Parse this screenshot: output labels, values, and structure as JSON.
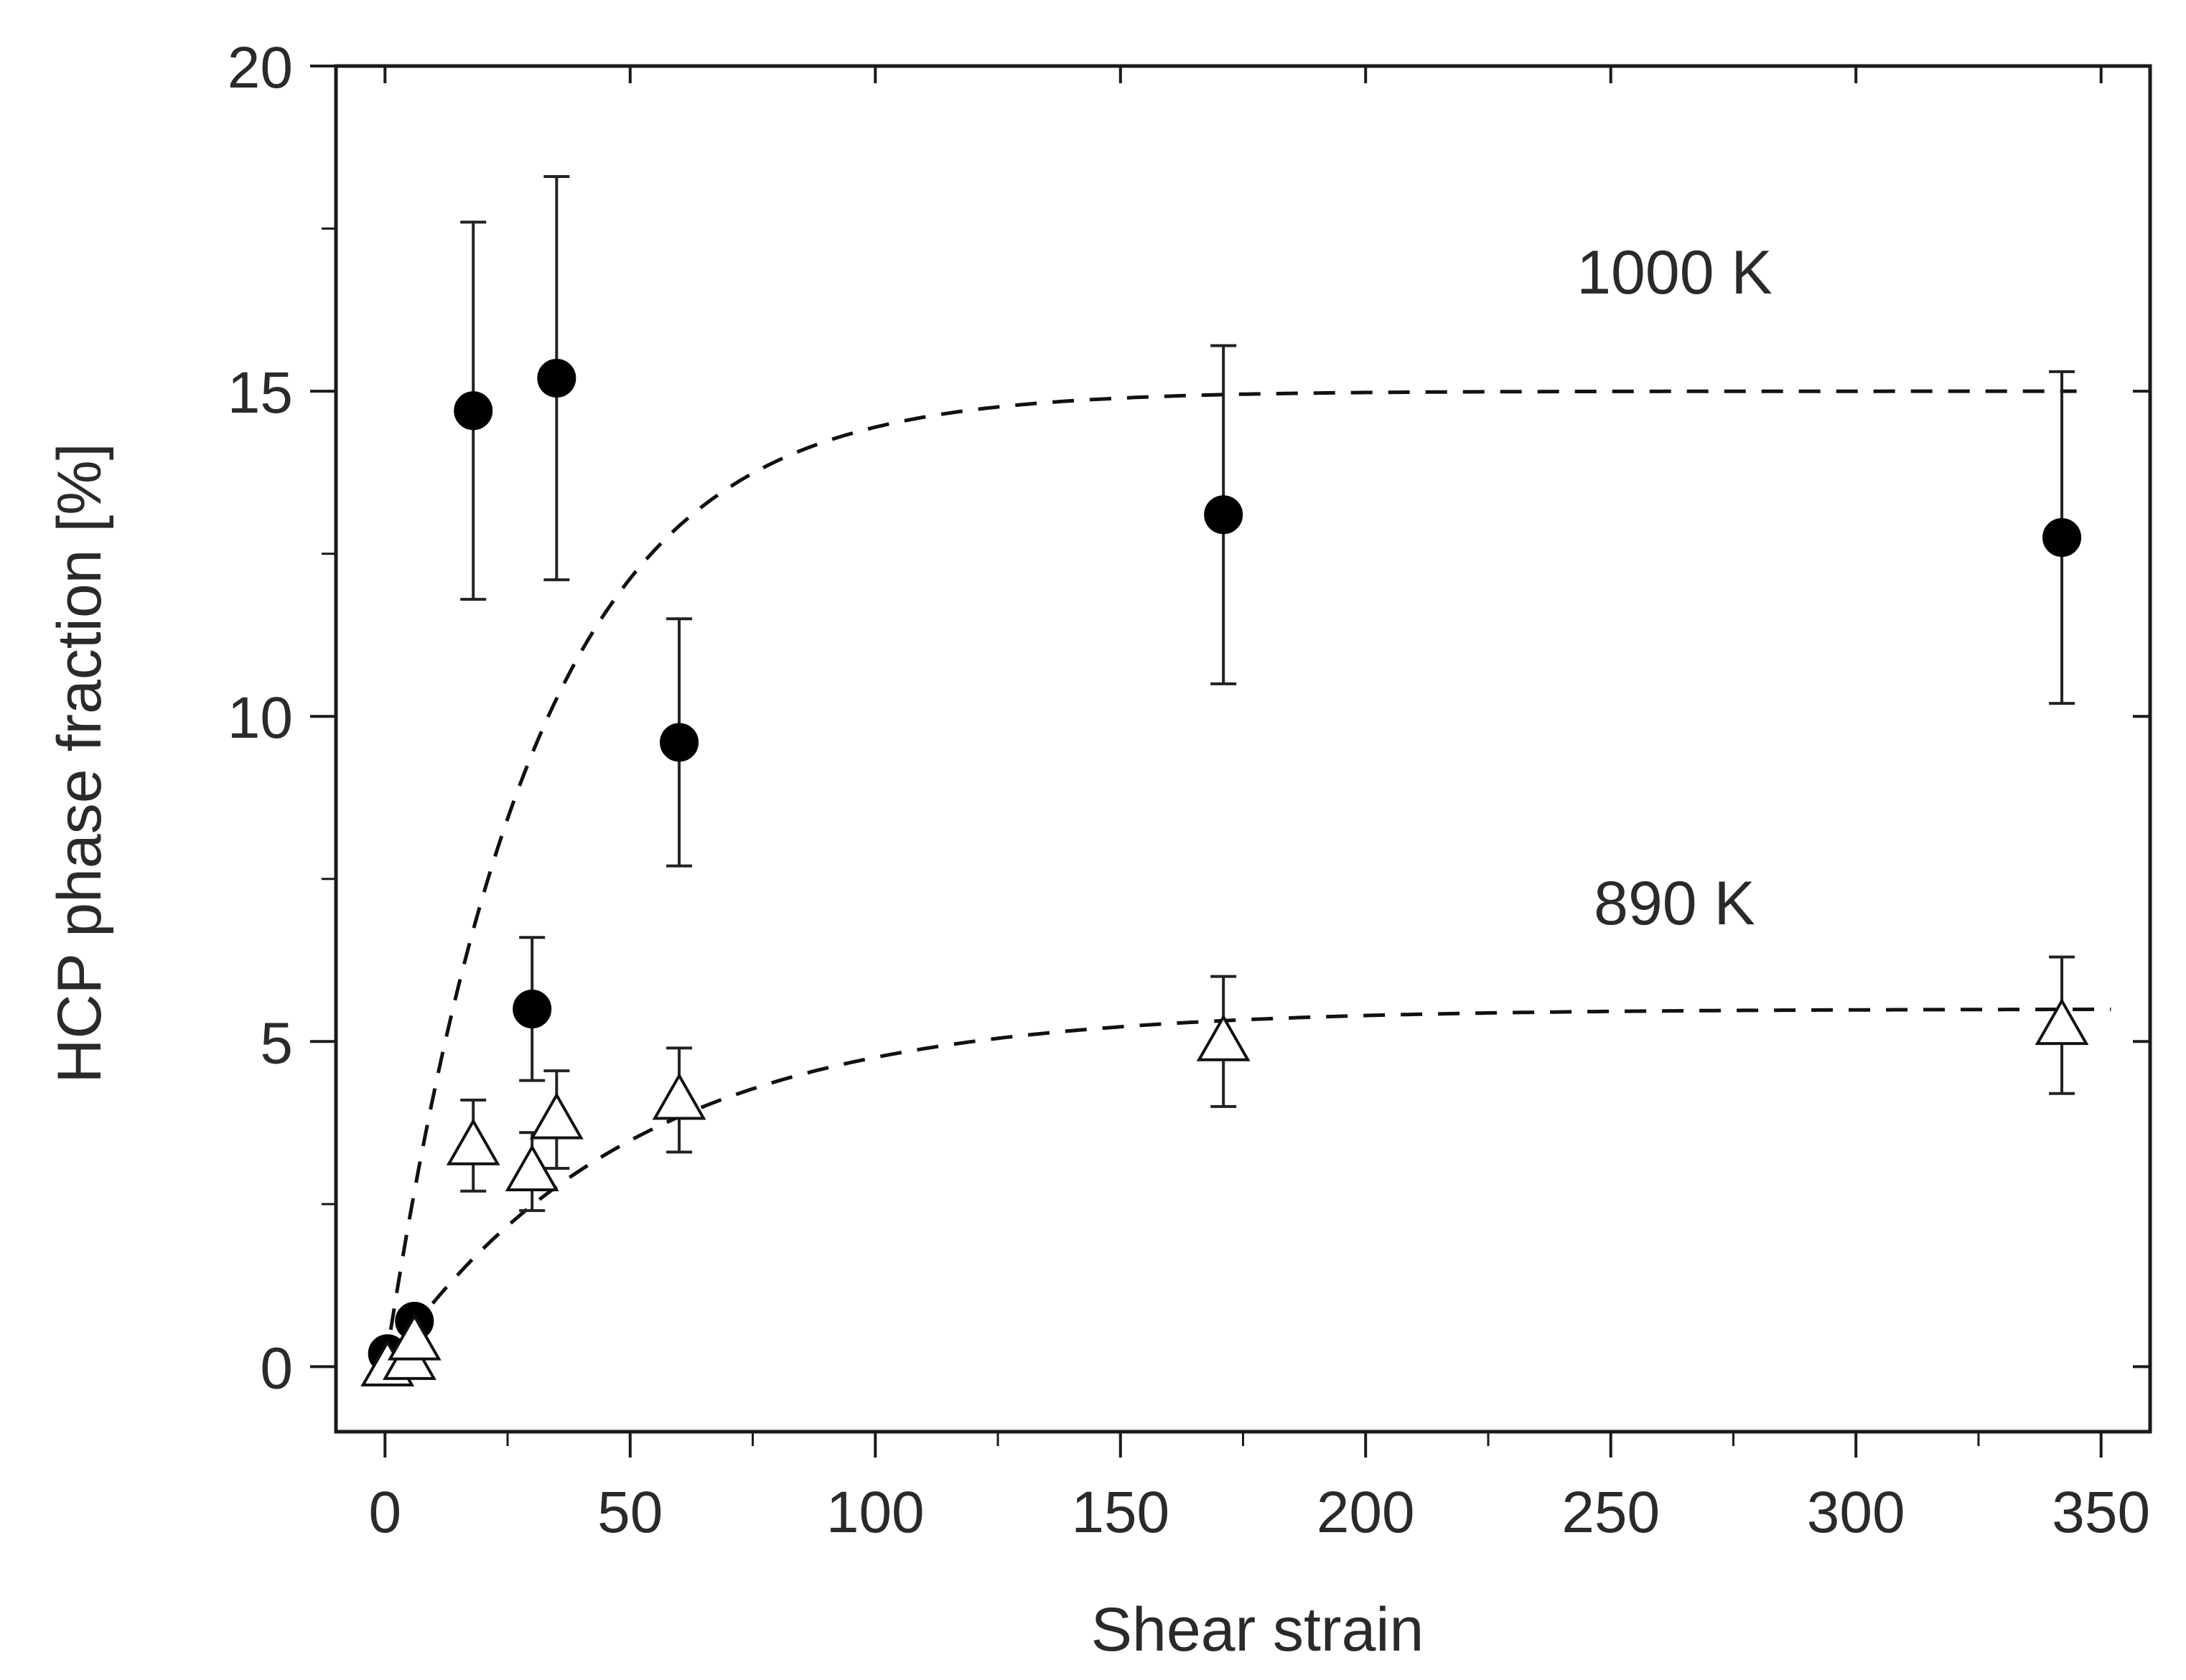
{
  "chart_data": {
    "type": "scatter",
    "title": "",
    "xlabel": "Shear strain",
    "ylabel": "HCP phase fraction [%]",
    "xlim": [
      -10,
      360
    ],
    "ylim": [
      -1,
      20
    ],
    "x_ticks": [
      0,
      50,
      100,
      150,
      200,
      250,
      300,
      350
    ],
    "y_ticks": [
      0,
      5,
      10,
      15,
      20
    ],
    "series": [
      {
        "name": "1000 K",
        "marker": "filled-circle",
        "color": "#000000",
        "points": [
          {
            "x": 0.5,
            "y": 0.2,
            "err_low": 0,
            "err_high": 0
          },
          {
            "x": 6,
            "y": 0.7,
            "err_low": 0,
            "err_high": 0
          },
          {
            "x": 18,
            "y": 14.7,
            "err_low": 2.9,
            "err_high": 2.9
          },
          {
            "x": 30,
            "y": 5.5,
            "err_low": 1.1,
            "err_high": 1.1
          },
          {
            "x": 35,
            "y": 15.2,
            "err_low": 3.1,
            "err_high": 3.1
          },
          {
            "x": 60,
            "y": 9.6,
            "err_low": 1.9,
            "err_high": 1.9
          },
          {
            "x": 171,
            "y": 13.1,
            "err_low": 2.6,
            "err_high": 2.6
          },
          {
            "x": 342,
            "y": 12.75,
            "err_low": 2.55,
            "err_high": 2.55
          }
        ],
        "fit": {
          "style": "dashed",
          "plateau": 15.0,
          "rate": 0.033,
          "x_start": 0,
          "x_end": 345
        }
      },
      {
        "name": "890 K",
        "marker": "open-triangle",
        "color": "#000000",
        "points": [
          {
            "x": 0.5,
            "y": 0.0,
            "err_low": 0,
            "err_high": 0
          },
          {
            "x": 5,
            "y": 0.1,
            "err_low": 0,
            "err_high": 0
          },
          {
            "x": 6,
            "y": 0.4,
            "err_low": 0,
            "err_high": 0
          },
          {
            "x": 18,
            "y": 3.4,
            "err_low": 0.7,
            "err_high": 0.7
          },
          {
            "x": 30,
            "y": 3.0,
            "err_low": 0.6,
            "err_high": 0.6
          },
          {
            "x": 35,
            "y": 3.8,
            "err_low": 0.75,
            "err_high": 0.75
          },
          {
            "x": 60,
            "y": 4.1,
            "err_low": 0.8,
            "err_high": 0.8
          },
          {
            "x": 171,
            "y": 5.0,
            "err_low": 1.0,
            "err_high": 1.0
          },
          {
            "x": 342,
            "y": 5.25,
            "err_low": 1.05,
            "err_high": 1.05
          }
        ],
        "fit": {
          "style": "dashed",
          "plateau": 5.5,
          "rate": 0.02,
          "x_start": 5,
          "x_end": 352
        }
      }
    ],
    "annotations": [
      {
        "text": "1000 K",
        "x": 263,
        "y": 16.5
      },
      {
        "text": "890 K",
        "x": 263,
        "y": 6.8
      }
    ],
    "grid": false,
    "legend": "none"
  }
}
